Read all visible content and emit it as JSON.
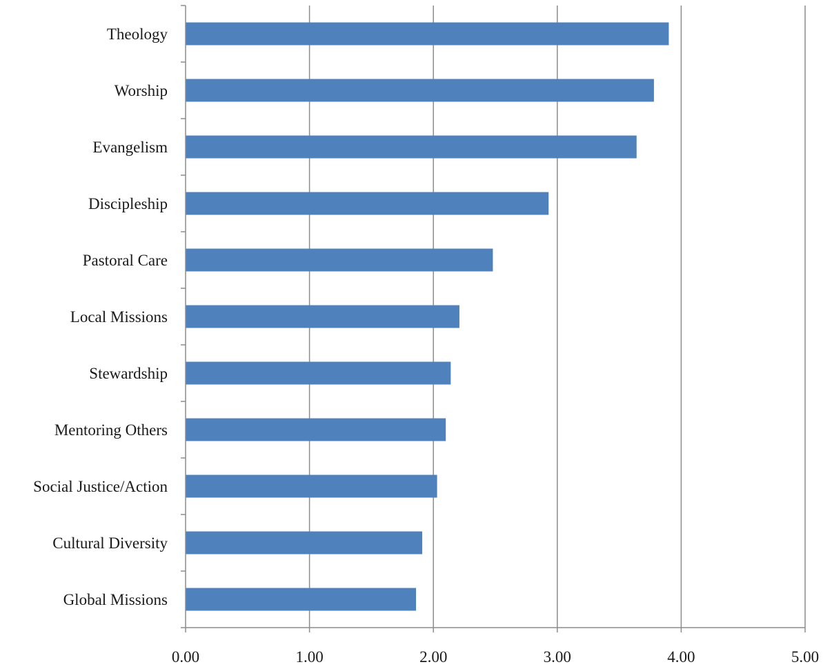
{
  "chart_data": {
    "type": "bar",
    "orientation": "horizontal",
    "title": "",
    "xlabel": "",
    "ylabel": "",
    "xlim": [
      0,
      5
    ],
    "x_ticks": [
      0,
      1,
      2,
      3,
      4,
      5
    ],
    "x_tick_labels": [
      "0.00",
      "1.00",
      "2.00",
      "3.00",
      "4.00",
      "5.00"
    ],
    "grid": "vertical",
    "legend": "none",
    "categories": [
      "Theology",
      "Worship",
      "Evangelism",
      "Discipleship",
      "Pastoral Care",
      "Local Missions",
      "Stewardship",
      "Mentoring Others",
      "Social Justice/Action",
      "Cultural Diversity",
      "Global Missions"
    ],
    "values": [
      3.9,
      3.78,
      3.64,
      2.93,
      2.48,
      2.21,
      2.14,
      2.1,
      2.03,
      1.91,
      1.86
    ],
    "bar_color": "#4f81bd",
    "grid_color": "#8c8c8c"
  }
}
